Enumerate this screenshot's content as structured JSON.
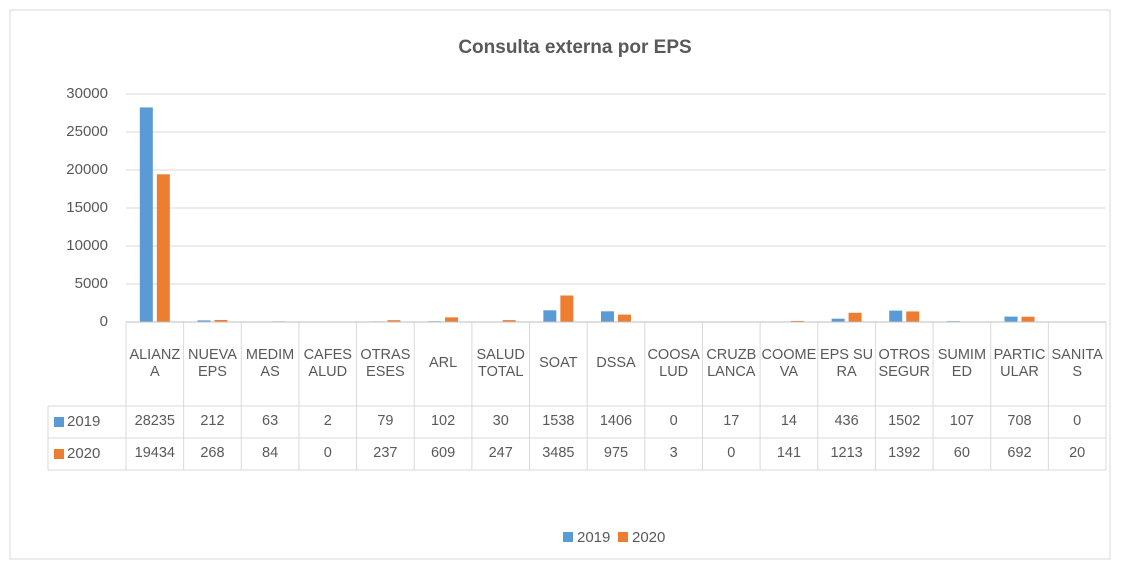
{
  "chart_data": {
    "type": "bar",
    "title": "Consulta externa por EPS",
    "categories": [
      "ALIANZA",
      "NUEVA EPS",
      "MEDIMAS",
      "CAFESALUD",
      "OTRAS ESES",
      "ARL",
      "SALUD TOTAL",
      "SOAT",
      "DSSA",
      "COOSALUD",
      "CRUZBLANCA",
      "COOMEVA",
      "EPS SURA",
      "OTROS SEGUR",
      "SUMIMED",
      "PARTICULAR",
      "SANITAS"
    ],
    "series": [
      {
        "name": "2019",
        "color": "#5b9bd5",
        "values": [
          28235,
          212,
          63,
          2,
          79,
          102,
          30,
          1538,
          1406,
          0,
          17,
          14,
          436,
          1502,
          107,
          708,
          0
        ]
      },
      {
        "name": "2020",
        "color": "#ed7d31",
        "values": [
          19434,
          268,
          84,
          0,
          237,
          609,
          247,
          3485,
          975,
          3,
          0,
          141,
          1213,
          1392,
          60,
          692,
          20
        ]
      }
    ],
    "ylim": [
      0,
      30000
    ],
    "yticks": [
      0,
      5000,
      10000,
      15000,
      20000,
      25000,
      30000
    ],
    "grid": true,
    "legend": "bottom"
  }
}
